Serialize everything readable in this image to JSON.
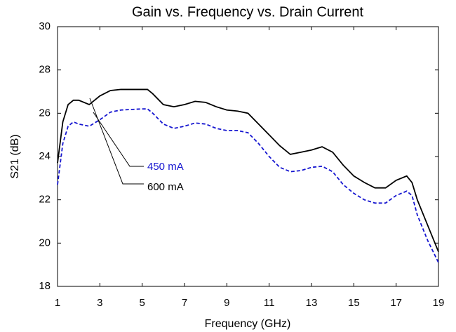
{
  "chart_data": {
    "type": "line",
    "title": "Gain vs. Frequency vs. Drain Current",
    "x_label": "Frequency (GHz)",
    "y_label": "S21 (dB)",
    "x": [
      1.0,
      1.25,
      1.5,
      1.75,
      2,
      2.5,
      3,
      3.5,
      4,
      5,
      5.25,
      5.5,
      6,
      6.5,
      7,
      7.5,
      8,
      8.5,
      9,
      9.5,
      10,
      10.5,
      11,
      11.5,
      12,
      12.5,
      13,
      13.5,
      14,
      14.5,
      15,
      15.5,
      16,
      16.5,
      17,
      17.5,
      17.75,
      18,
      18.5,
      19
    ],
    "series": [
      {
        "name": "600 mA",
        "color": "#000000",
        "dash": false,
        "values": [
          23.7,
          25.6,
          26.4,
          26.6,
          26.6,
          26.4,
          26.8,
          27.05,
          27.1,
          27.1,
          27.1,
          26.9,
          26.4,
          26.3,
          26.4,
          26.55,
          26.5,
          26.3,
          26.15,
          26.1,
          26.0,
          25.5,
          25.0,
          24.5,
          24.1,
          24.2,
          24.3,
          24.45,
          24.2,
          23.6,
          23.1,
          22.8,
          22.55,
          22.55,
          22.9,
          23.1,
          22.8,
          22.0,
          20.8,
          19.6
        ]
      },
      {
        "name": "450 mA",
        "color": "#1515d0",
        "dash": true,
        "values": [
          22.7,
          24.6,
          25.4,
          25.6,
          25.5,
          25.4,
          25.7,
          26.05,
          26.15,
          26.2,
          26.2,
          26.0,
          25.5,
          25.3,
          25.4,
          25.55,
          25.5,
          25.3,
          25.2,
          25.2,
          25.1,
          24.6,
          24.0,
          23.5,
          23.3,
          23.35,
          23.5,
          23.55,
          23.3,
          22.7,
          22.3,
          22.0,
          21.85,
          21.85,
          22.2,
          22.4,
          22.2,
          21.3,
          20.1,
          19.1
        ]
      }
    ],
    "xlim": [
      1,
      19
    ],
    "xticks": [
      1,
      3,
      5,
      7,
      9,
      11,
      13,
      15,
      17,
      19
    ],
    "ylim": [
      18,
      30
    ],
    "yticks": [
      18,
      20,
      22,
      24,
      26,
      28,
      30
    ],
    "grid": false
  }
}
